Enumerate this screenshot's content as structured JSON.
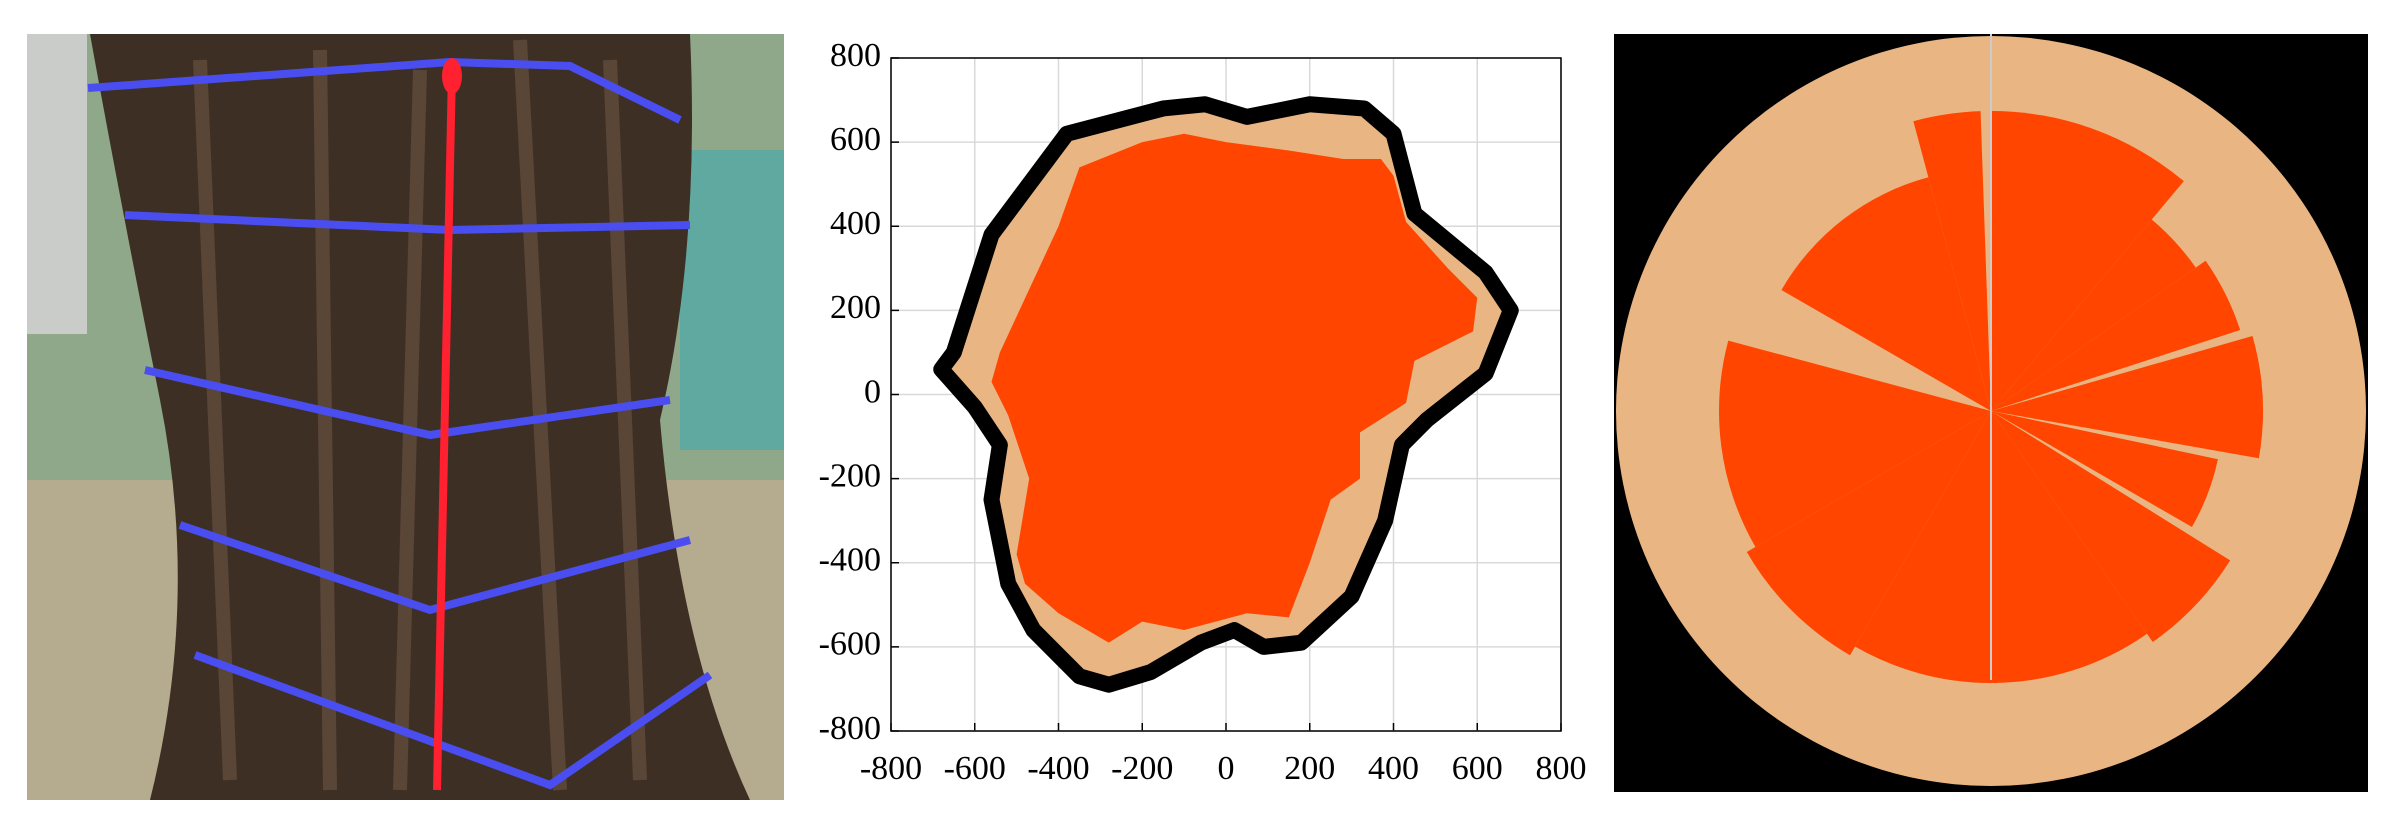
{
  "chart_data": {
    "type": "polygon",
    "xlim": [
      -800,
      800
    ],
    "xticks": [
      -800,
      -600,
      -400,
      -200,
      0,
      200,
      400,
      600,
      800
    ],
    "ylim": [
      -800,
      800
    ],
    "yticks": [
      -800,
      -600,
      -400,
      -200,
      0,
      200,
      400,
      600,
      800
    ],
    "grid": true,
    "series": [
      {
        "color": "#e9b583",
        "edge": "#000000",
        "x": [
          -650,
          -560,
          -380,
          -150,
          -50,
          50,
          200,
          330,
          400,
          450,
          620,
          680,
          620,
          480,
          420,
          380,
          300,
          180,
          90,
          20,
          -60,
          -180,
          -280,
          -350,
          -460,
          -520,
          -560,
          -540,
          -600,
          -680
        ],
        "values": [
          100,
          380,
          620,
          680,
          690,
          660,
          690,
          680,
          620,
          430,
          290,
          200,
          50,
          -60,
          -120,
          -300,
          -480,
          -590,
          -600,
          -560,
          -590,
          -660,
          -690,
          -670,
          -560,
          -450,
          -250,
          -120,
          -30,
          60
        ]
      },
      {
        "color": "#ff4500",
        "x": [
          -400,
          -350,
          -200,
          -100,
          0,
          150,
          280,
          370,
          400,
          430,
          530,
          600,
          590,
          450,
          430,
          320,
          320,
          250,
          200,
          150,
          50,
          -100,
          -200,
          -280,
          -400,
          -480,
          -500,
          -470,
          -520,
          -560,
          -540
        ],
        "values": [
          400,
          540,
          600,
          620,
          600,
          580,
          560,
          560,
          520,
          410,
          300,
          230,
          150,
          80,
          -20,
          -90,
          -200,
          -250,
          -400,
          -530,
          -520,
          -560,
          -540,
          -590,
          -520,
          -450,
          -380,
          -200,
          -50,
          30,
          100
        ]
      }
    ]
  }
}
